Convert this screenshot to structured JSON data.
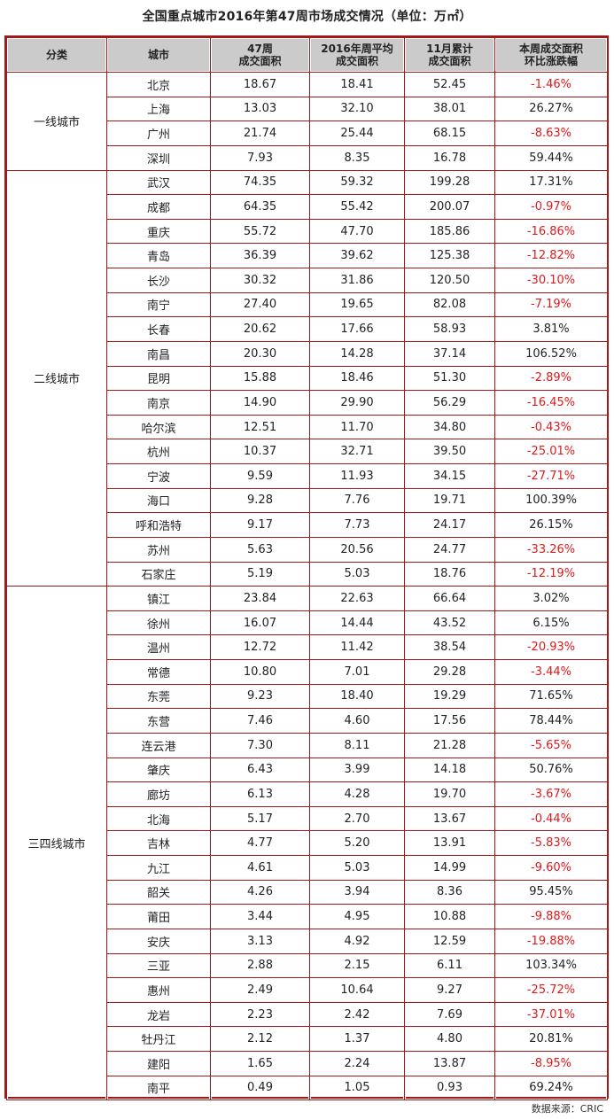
{
  "title": "全国重点城市2016年第47周市场成交情况（单位：万㎡）",
  "headers": {
    "category": "分类",
    "city": "城市",
    "week47_line1": "47周",
    "week47_line2": "成交面积",
    "avg2016_line1": "2016年周平均",
    "avg2016_line2": "成交面积",
    "nov_line1": "11月累计",
    "nov_line2": "成交面积",
    "change_line1": "本周成交面积",
    "change_line2": "环比涨跌幅"
  },
  "groups": [
    {
      "category": "一线城市",
      "rows": [
        [
          "北京",
          "18.67",
          "18.41",
          "52.45",
          "-1.46%"
        ],
        [
          "上海",
          "13.03",
          "32.10",
          "38.01",
          "26.27%"
        ],
        [
          "广州",
          "21.74",
          "25.44",
          "68.15",
          "-8.63%"
        ],
        [
          "深圳",
          "7.93",
          "8.35",
          "16.78",
          "59.44%"
        ]
      ]
    },
    {
      "category": "二线城市",
      "rows": [
        [
          "武汉",
          "74.35",
          "59.32",
          "199.28",
          "17.31%"
        ],
        [
          "成都",
          "64.35",
          "55.42",
          "200.07",
          "-0.97%"
        ],
        [
          "重庆",
          "55.72",
          "47.70",
          "185.86",
          "-16.86%"
        ],
        [
          "青岛",
          "36.39",
          "39.62",
          "125.38",
          "-12.82%"
        ],
        [
          "长沙",
          "30.32",
          "31.86",
          "120.50",
          "-30.10%"
        ],
        [
          "南宁",
          "27.40",
          "19.65",
          "82.08",
          "-7.19%"
        ],
        [
          "长春",
          "20.62",
          "17.66",
          "58.93",
          "3.81%"
        ],
        [
          "南昌",
          "20.30",
          "14.28",
          "37.14",
          "106.52%"
        ],
        [
          "昆明",
          "15.88",
          "18.46",
          "51.30",
          "-2.89%"
        ],
        [
          "南京",
          "14.90",
          "29.90",
          "56.29",
          "-16.45%"
        ],
        [
          "哈尔滨",
          "12.51",
          "11.70",
          "34.80",
          "-0.43%"
        ],
        [
          "杭州",
          "10.37",
          "32.71",
          "39.50",
          "-25.01%"
        ],
        [
          "宁波",
          "9.59",
          "11.93",
          "34.15",
          "-27.71%"
        ],
        [
          "海口",
          "9.28",
          "7.76",
          "19.71",
          "100.39%"
        ],
        [
          "呼和浩特",
          "9.17",
          "7.73",
          "24.17",
          "26.15%"
        ],
        [
          "苏州",
          "5.63",
          "20.56",
          "24.77",
          "-33.26%"
        ],
        [
          "石家庄",
          "5.19",
          "5.03",
          "18.76",
          "-12.19%"
        ]
      ]
    },
    {
      "category": "三四线城市",
      "rows": [
        [
          "镇江",
          "23.84",
          "22.63",
          "66.64",
          "3.02%"
        ],
        [
          "徐州",
          "16.07",
          "14.44",
          "43.52",
          "6.15%"
        ],
        [
          "温州",
          "12.72",
          "11.42",
          "38.54",
          "-20.93%"
        ],
        [
          "常德",
          "10.80",
          "7.01",
          "29.28",
          "-3.44%"
        ],
        [
          "东莞",
          "9.23",
          "18.40",
          "19.29",
          "71.65%"
        ],
        [
          "东营",
          "7.46",
          "4.60",
          "17.56",
          "78.44%"
        ],
        [
          "连云港",
          "7.30",
          "8.11",
          "21.28",
          "-5.65%"
        ],
        [
          "肇庆",
          "6.43",
          "3.99",
          "14.18",
          "50.76%"
        ],
        [
          "廊坊",
          "6.13",
          "4.28",
          "19.70",
          "-3.67%"
        ],
        [
          "北海",
          "5.17",
          "2.70",
          "13.67",
          "-0.44%"
        ],
        [
          "吉林",
          "4.77",
          "5.20",
          "13.91",
          "-5.83%"
        ],
        [
          "九江",
          "4.61",
          "5.03",
          "14.99",
          "-9.60%"
        ],
        [
          "韶关",
          "4.26",
          "3.94",
          "8.36",
          "95.45%"
        ],
        [
          "莆田",
          "3.44",
          "4.95",
          "10.88",
          "-9.88%"
        ],
        [
          "安庆",
          "3.13",
          "4.92",
          "12.59",
          "-19.88%"
        ],
        [
          "三亚",
          "2.88",
          "2.15",
          "6.11",
          "103.34%"
        ],
        [
          "惠州",
          "2.49",
          "10.64",
          "9.27",
          "-25.72%"
        ],
        [
          "龙岩",
          "2.23",
          "2.42",
          "7.69",
          "-37.01%"
        ],
        [
          "牡丹江",
          "2.12",
          "1.37",
          "4.80",
          "20.81%"
        ],
        [
          "建阳",
          "1.65",
          "2.24",
          "13.87",
          "-8.95%"
        ],
        [
          "南平",
          "0.49",
          "1.05",
          "0.93",
          "69.24%"
        ]
      ]
    }
  ],
  "source": "数据来源：CRIC",
  "colors": {
    "border": "#a01a1a",
    "header_bg": "#cbcbcb",
    "negative": "#e0191d"
  }
}
